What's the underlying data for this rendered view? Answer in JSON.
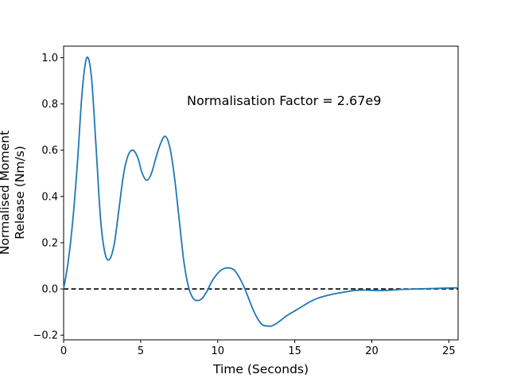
{
  "chart_data": {
    "type": "line",
    "xlabel": "Time (Seconds)",
    "ylabel_line1": "Normalised Moment",
    "ylabel_line2": "Release (Nm/s)",
    "annotation": "Normalisation Factor = 2.67e9",
    "xlim": [
      0,
      25.6
    ],
    "ylim": [
      -0.22,
      1.05
    ],
    "x_ticks": [
      0,
      5,
      10,
      15,
      20,
      25
    ],
    "y_ticks": [
      -0.2,
      0.0,
      0.2,
      0.4,
      0.6,
      0.8,
      1.0
    ],
    "x_tick_labels": [
      "0",
      "5",
      "10",
      "15",
      "20",
      "25"
    ],
    "y_tick_labels": [
      "−0.2",
      "0.0",
      "0.2",
      "0.4",
      "0.6",
      "0.8",
      "1.0"
    ],
    "grid": false,
    "reference_line": {
      "y": 0.0,
      "style": "dashed",
      "color": "#000000"
    },
    "series": [
      {
        "color": "#1f77b4",
        "points": [
          [
            0.0,
            0.0
          ],
          [
            0.3,
            0.12
          ],
          [
            0.6,
            0.3
          ],
          [
            0.9,
            0.55
          ],
          [
            1.2,
            0.85
          ],
          [
            1.5,
            1.0
          ],
          [
            1.8,
            0.92
          ],
          [
            2.1,
            0.62
          ],
          [
            2.4,
            0.3
          ],
          [
            2.7,
            0.15
          ],
          [
            3.0,
            0.13
          ],
          [
            3.3,
            0.2
          ],
          [
            3.6,
            0.35
          ],
          [
            3.9,
            0.5
          ],
          [
            4.2,
            0.58
          ],
          [
            4.5,
            0.6
          ],
          [
            4.8,
            0.57
          ],
          [
            5.1,
            0.5
          ],
          [
            5.4,
            0.47
          ],
          [
            5.7,
            0.5
          ],
          [
            6.0,
            0.57
          ],
          [
            6.3,
            0.63
          ],
          [
            6.6,
            0.66
          ],
          [
            6.9,
            0.61
          ],
          [
            7.2,
            0.48
          ],
          [
            7.5,
            0.3
          ],
          [
            7.8,
            0.12
          ],
          [
            8.1,
            0.01
          ],
          [
            8.4,
            -0.04
          ],
          [
            8.7,
            -0.05
          ],
          [
            9.0,
            -0.04
          ],
          [
            9.3,
            -0.01
          ],
          [
            9.6,
            0.03
          ],
          [
            9.9,
            0.06
          ],
          [
            10.2,
            0.08
          ],
          [
            10.5,
            0.09
          ],
          [
            10.8,
            0.09
          ],
          [
            11.1,
            0.08
          ],
          [
            11.4,
            0.05
          ],
          [
            11.7,
            0.01
          ],
          [
            12.0,
            -0.04
          ],
          [
            12.3,
            -0.09
          ],
          [
            12.6,
            -0.13
          ],
          [
            12.9,
            -0.155
          ],
          [
            13.2,
            -0.16
          ],
          [
            13.5,
            -0.16
          ],
          [
            13.8,
            -0.15
          ],
          [
            14.1,
            -0.135
          ],
          [
            14.5,
            -0.115
          ],
          [
            15.0,
            -0.095
          ],
          [
            15.5,
            -0.075
          ],
          [
            16.0,
            -0.055
          ],
          [
            16.5,
            -0.04
          ],
          [
            17.0,
            -0.03
          ],
          [
            17.5,
            -0.022
          ],
          [
            18.0,
            -0.016
          ],
          [
            18.5,
            -0.01
          ],
          [
            19.0,
            -0.006
          ],
          [
            19.5,
            -0.005
          ],
          [
            20.0,
            -0.006
          ],
          [
            20.5,
            -0.007
          ],
          [
            21.0,
            -0.006
          ],
          [
            21.5,
            -0.004
          ],
          [
            22.0,
            -0.002
          ],
          [
            23.0,
            0.0
          ],
          [
            24.0,
            0.002
          ],
          [
            25.0,
            0.004
          ],
          [
            25.6,
            0.005
          ]
        ]
      }
    ]
  }
}
